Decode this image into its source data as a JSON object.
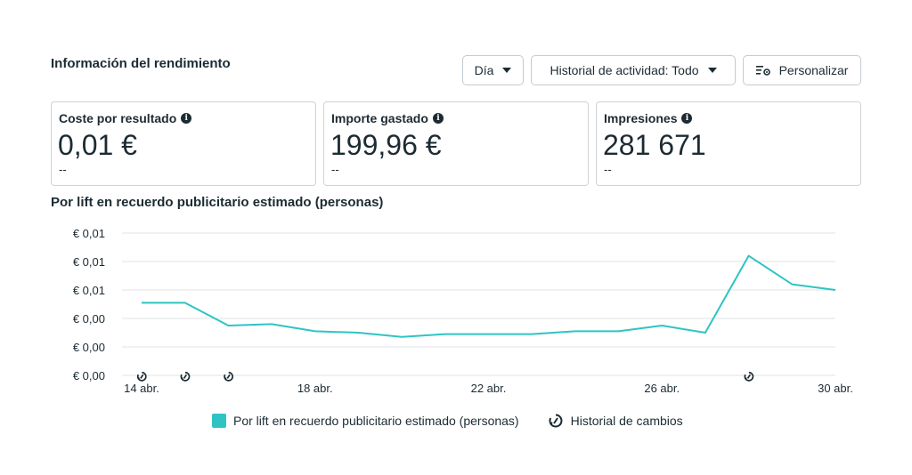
{
  "section_title": "Información del rendimiento",
  "toolbar": {
    "period_label": "Día",
    "history_label": "Historial de actividad: Todo",
    "customize_label": "Personalizar"
  },
  "cards": [
    {
      "label": "Coste por resultado",
      "value": "0,01 €",
      "sub": "--"
    },
    {
      "label": "Importe gastado",
      "value": "199,96 €",
      "sub": "--"
    },
    {
      "label": "Impresiones",
      "value": "281 671",
      "sub": "--"
    }
  ],
  "chart_title": "Por lift en recuerdo publicitario estimado (personas)",
  "colors": {
    "line": "#2ec4c4",
    "grid": "#dfe3e6",
    "text": "#1c2b33"
  },
  "legend": {
    "series_label": "Por lift en recuerdo publicitario estimado (personas)",
    "history_label": "Historial de cambios"
  },
  "chart_data": {
    "type": "line",
    "title": "Por lift en recuerdo publicitario estimado (personas)",
    "y_tick_labels": [
      "€ 0,00",
      "€ 0,00",
      "€ 0,00",
      "€ 0,01",
      "€ 0,01",
      "€ 0,01"
    ],
    "y_tick_values": [
      0,
      0.002,
      0.004,
      0.006,
      0.008,
      0.01
    ],
    "ylim": [
      0,
      0.01
    ],
    "x_tick_labels": [
      "14 abr.",
      "18 abr.",
      "22 abr.",
      "26 abr.",
      "30 abr."
    ],
    "x_tick_days": [
      14,
      18,
      22,
      26,
      30
    ],
    "xlim": [
      14,
      30
    ],
    "grid": true,
    "legend_position": "bottom",
    "series": [
      {
        "name": "Por lift en recuerdo publicitario estimado (personas)",
        "x": [
          14,
          15,
          16,
          17,
          18,
          19,
          20,
          21,
          22,
          23,
          24,
          25,
          26,
          27,
          28,
          29,
          30
        ],
        "values": [
          0.0051,
          0.0051,
          0.0035,
          0.0036,
          0.0031,
          0.003,
          0.0027,
          0.0029,
          0.0029,
          0.0029,
          0.0031,
          0.0031,
          0.0035,
          0.003,
          0.0084,
          0.0064,
          0.006
        ]
      }
    ],
    "change_history_days": [
      14,
      15,
      16,
      28
    ]
  }
}
